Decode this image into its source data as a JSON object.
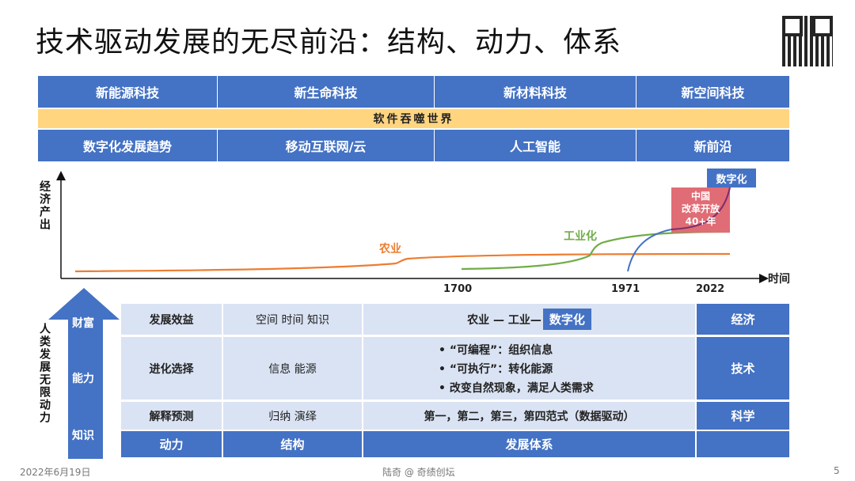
{
  "title": "技术驱动发展的无尽前沿：结构、动力、体系",
  "top_table": {
    "row1": [
      "新能源科技",
      "新生命科技",
      "新材料科技",
      "新空间科技"
    ],
    "band": "软件吞噬世界",
    "row3": [
      "数字化发展趋势",
      "移动互联网/云",
      "人工智能",
      "新前沿"
    ]
  },
  "chart": {
    "ylabel": "经济产出",
    "xlabel": "时间",
    "ticks": [
      "1700",
      "1971",
      "2022"
    ],
    "labels": {
      "agriculture": "农业",
      "industry": "工业化",
      "china": "中国\n改革开放\n40+年",
      "digital": "数字化"
    },
    "colors": {
      "agriculture": "#ED7D31",
      "industry": "#70AD47",
      "blue": "#4472C4",
      "purple": "#7B2C6F",
      "china_box": "#E06C75"
    }
  },
  "arrow": {
    "side_label": "人类发展无限动力",
    "levels": [
      "财富",
      "能力",
      "知识"
    ]
  },
  "bottom_table": {
    "rows": [
      {
        "c1": "发展效益",
        "c2": "空间  时间  知识",
        "c3": "农业 — 工业—",
        "c3_badge": "数字化",
        "c4": "经济"
      },
      {
        "c1": "进化选择",
        "c2": "信息  能源",
        "bullets": [
          "•  “可编程”：组织信息",
          "•  “可执行”：转化能源",
          "• 改变自然现象，满足人类需求"
        ],
        "c4": "技术"
      },
      {
        "c1": "解释预测",
        "c2": "归纳  演绎",
        "c3": "第一，第二，第三，第四范式（数据驱动）",
        "c4": "科学"
      }
    ],
    "header": [
      "动力",
      "结构",
      "发展体系",
      ""
    ]
  },
  "footer": {
    "date": "2022年6月19日",
    "author": "陆奇 @ 奇绩创坛",
    "page": "5"
  },
  "watermark": "奇绩创坛"
}
